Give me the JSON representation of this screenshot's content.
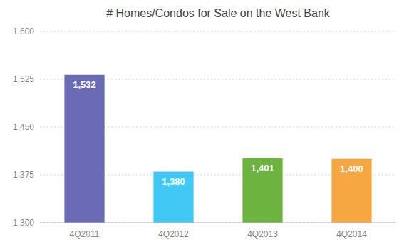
{
  "chart_data": {
    "type": "bar",
    "title": "# Homes/Condos for Sale on the West Bank",
    "categories": [
      "4Q2011",
      "4Q2012",
      "4Q2013",
      "4Q2014"
    ],
    "values": [
      1532,
      1380,
      1401,
      1400
    ],
    "value_labels": [
      "1,532",
      "1,380",
      "1,401",
      "1,400"
    ],
    "data_labels": true,
    "colors": [
      "#6B6BB5",
      "#42C8F4",
      "#6DB33F",
      "#F5A742"
    ],
    "ylim": [
      1300,
      1600
    ],
    "yticks": [
      {
        "value": 1300,
        "label": "1,300"
      },
      {
        "value": 1375,
        "label": "1,375"
      },
      {
        "value": 1450,
        "label": "1,450"
      },
      {
        "value": 1525,
        "label": "1,525"
      },
      {
        "value": 1600,
        "label": "1,600"
      }
    ],
    "grid": true
  }
}
